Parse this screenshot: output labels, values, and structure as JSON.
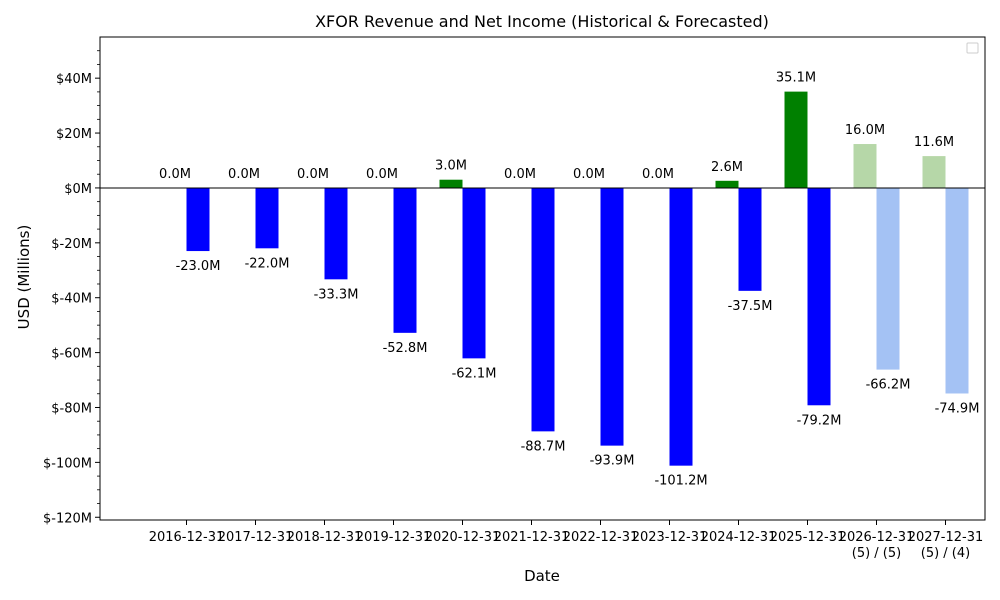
{
  "chart_data": {
    "type": "bar",
    "title": "XFOR Revenue and Net Income (Historical & Forecasted)",
    "xlabel": "Date",
    "ylabel": "USD (Millions)",
    "ylim": [
      -121,
      55
    ],
    "yticks": [
      40,
      20,
      0,
      -20,
      -40,
      -60,
      -80,
      -100,
      -120
    ],
    "ytick_labels": [
      "$40M",
      "$20M",
      "$0M",
      "$-20M",
      "$-40M",
      "$-60M",
      "$-80M",
      "$-100M",
      "$-120M"
    ],
    "categories": [
      "2016-12-31",
      "2017-12-31",
      "2018-12-31",
      "2019-12-31",
      "2020-12-31",
      "2021-12-31",
      "2022-12-31",
      "2023-12-31",
      "2024-12-31",
      "2025-12-31",
      "2026-12-31\n(5) / (5)",
      "2027-12-31\n(5) / (4)"
    ],
    "forecast_start_index": 10,
    "series": [
      {
        "key": "revenue",
        "values": [
          0.0,
          0.0,
          0.0,
          0.0,
          3.0,
          0.0,
          0.0,
          0.0,
          2.6,
          35.1,
          16.0,
          11.6
        ],
        "labels": [
          "0.0M",
          "0.0M",
          "0.0M",
          "0.0M",
          "3.0M",
          "0.0M",
          "0.0M",
          "0.0M",
          "2.6M",
          "35.1M",
          "16.0M",
          "11.6M"
        ],
        "color": "#008000",
        "forecast_color": "#b6d7a8"
      },
      {
        "key": "net_income",
        "values": [
          -23.0,
          -22.0,
          -33.3,
          -52.8,
          -62.1,
          -88.7,
          -93.9,
          -101.2,
          -37.5,
          -79.2,
          -66.2,
          -74.9
        ],
        "labels": [
          "-23.0M",
          "-22.0M",
          "-33.3M",
          "-52.8M",
          "-62.1M",
          "-88.7M",
          "-93.9M",
          "-101.2M",
          "-37.5M",
          "-79.2M",
          "-66.2M",
          "-74.9M"
        ],
        "color": "#0000ff",
        "forecast_color": "#a4c2f4"
      }
    ],
    "legend": "top-right",
    "grid": false,
    "zero_line": true
  }
}
